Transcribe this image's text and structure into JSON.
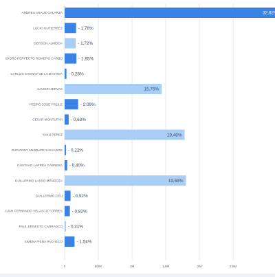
{
  "chart_data": {
    "type": "bar",
    "orientation": "horizontal",
    "grid": true,
    "xlim": [
      0,
      3100000
    ],
    "ticks": [
      {
        "value": 0,
        "label": "0"
      },
      {
        "value": 500000,
        "label": "500K"
      },
      {
        "value": 1000000,
        "label": "1M"
      },
      {
        "value": 1500000,
        "label": "1,5M"
      },
      {
        "value": 2000000,
        "label": "2M"
      },
      {
        "value": 2500000,
        "label": "2,5M"
      }
    ],
    "colors": {
      "highlight": "#3b82e6",
      "light": "#a9cef5",
      "grid": "#e6e9ee",
      "category_text": "#5a6472",
      "value_text": "#3a4a66",
      "highlight_value_text": "#ffffff"
    },
    "bars": [
      {
        "category": "ANDRES ARAUZ GALARZA",
        "value": 3200000,
        "label": "32,62%",
        "color": "highlight",
        "label_inside": true
      },
      {
        "category": "LUCIO GUTIERREZ",
        "value": 170000,
        "label": "1,78%",
        "color": "highlight",
        "label_inside": false
      },
      {
        "category": "GERSON ALMEIDA",
        "value": 165000,
        "label": "1,72%",
        "color": "light",
        "label_inside": false
      },
      {
        "category": "ISIDRO PERFECTO ROMERO CARBO",
        "value": 175000,
        "label": "1,85%",
        "color": "highlight",
        "label_inside": false
      },
      {
        "category": "CARLOS SAGNAY DE LA BASTIDA",
        "value": 27000,
        "label": "0,28%",
        "color": "highlight",
        "label_inside": false
      },
      {
        "category": "XAVIER HERVAS",
        "value": 1440000,
        "label": "15,75%",
        "color": "light",
        "label_inside": true
      },
      {
        "category": "PEDRO JOSE FREILE",
        "value": 200000,
        "label": "2,09%",
        "color": "highlight",
        "label_inside": false
      },
      {
        "category": "CESAR MONTUFAR",
        "value": 60000,
        "label": "0,63%",
        "color": "highlight",
        "label_inside": false
      },
      {
        "category": "YAKU PEREZ",
        "value": 1780000,
        "label": "19,48%",
        "color": "light",
        "label_inside": true
      },
      {
        "category": "GIOVANNY ANDRADE SALVADOR",
        "value": 21000,
        "label": "0,22%",
        "color": "highlight",
        "label_inside": false
      },
      {
        "category": "GUSTAVO LARREA CABRERA",
        "value": 38000,
        "label": "0,40%",
        "color": "highlight",
        "label_inside": false
      },
      {
        "category": "GUILLERMO LASSO MENDOZA",
        "value": 1800000,
        "label": "19,68%",
        "color": "light",
        "label_inside": true
      },
      {
        "category": "GUILLERMO CELI",
        "value": 88000,
        "label": "0,92%",
        "color": "highlight",
        "label_inside": false
      },
      {
        "category": "JUAN FERNANDO VELASCO TORRES",
        "value": 78000,
        "label": "0,82%",
        "color": "highlight",
        "label_inside": false
      },
      {
        "category": "PAUL ERNESTO CARRASCO",
        "value": 20000,
        "label": "0,21%",
        "color": "light",
        "label_inside": false
      },
      {
        "category": "XIMENA PEÑA PACHECO",
        "value": 147000,
        "label": "1,54%",
        "color": "highlight",
        "label_inside": false
      }
    ]
  }
}
